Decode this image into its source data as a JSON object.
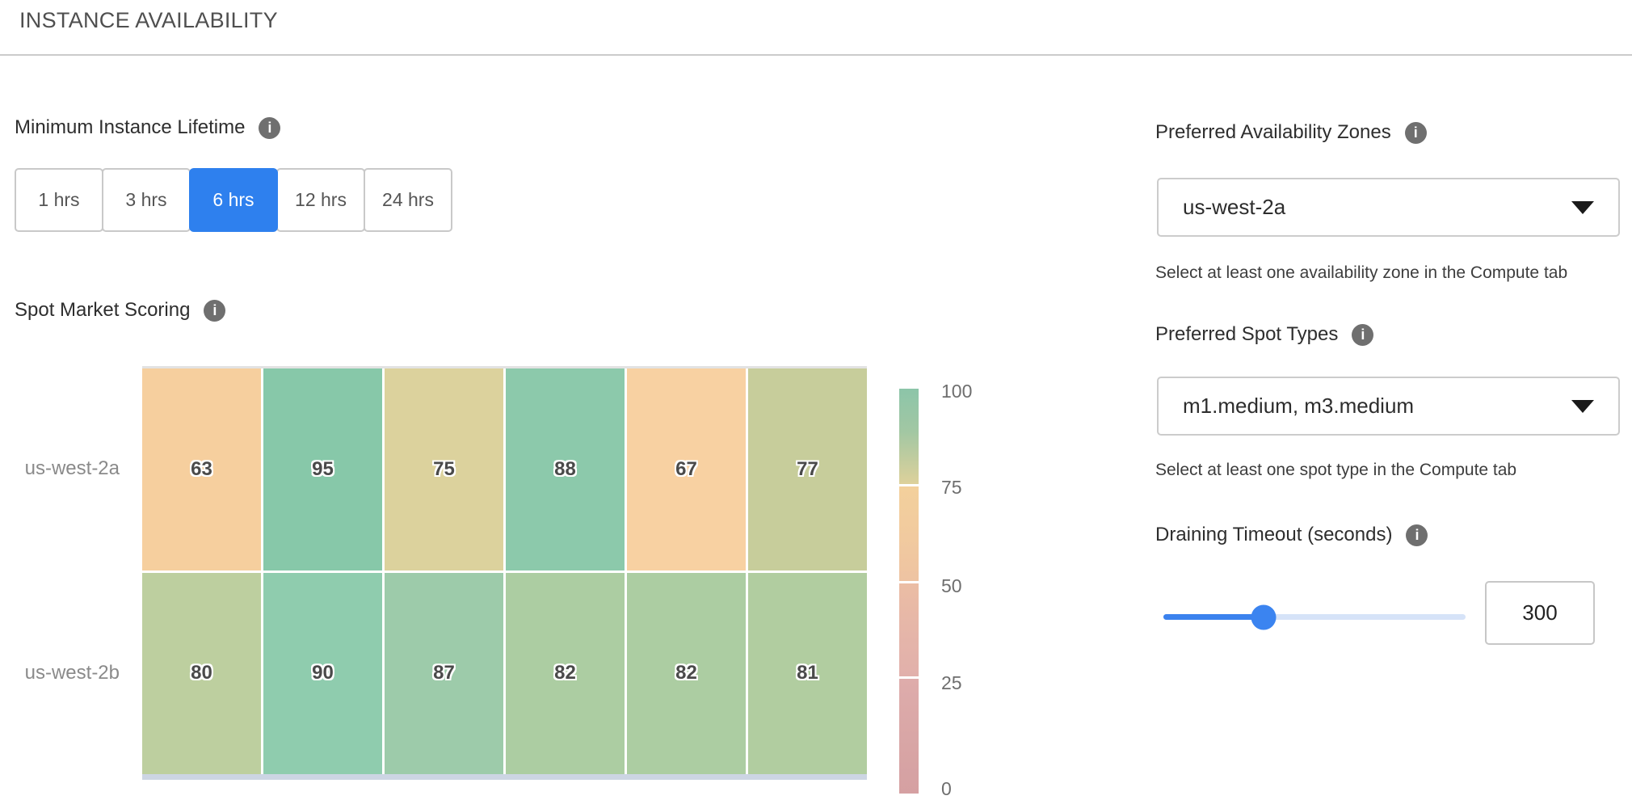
{
  "title": "INSTANCE AVAILABILITY",
  "minimum_instance_lifetime": {
    "label": "Minimum Instance Lifetime",
    "options": [
      "1 hrs",
      "3 hrs",
      "6 hrs",
      "12 hrs",
      "24 hrs"
    ],
    "selected": "6 hrs"
  },
  "spot_market_scoring": {
    "label": "Spot Market Scoring"
  },
  "chart_data": {
    "type": "heatmap",
    "title": "Spot Market Scoring",
    "rows": [
      "us-west-2a",
      "us-west-2b"
    ],
    "series": [
      {
        "name": "us-west-2a",
        "values": [
          63,
          95,
          75,
          88,
          67,
          77
        ]
      },
      {
        "name": "us-west-2b",
        "values": [
          80,
          90,
          87,
          82,
          82,
          81
        ]
      }
    ],
    "cell_colors": [
      [
        "#f6cf9e",
        "#87c8a9",
        "#dcd29d",
        "#8cc9ab",
        "#f8d1a2",
        "#c7cd9b"
      ],
      [
        "#bdcf9f",
        "#8fccae",
        "#9dcbaa",
        "#accda2",
        "#accda2",
        "#b1cda0"
      ]
    ],
    "colorbar": {
      "ticks": [
        "100",
        "75",
        "50",
        "25",
        "0"
      ],
      "min": 0,
      "max": 100,
      "gradient_top_to_bottom": [
        "#8cc5a9",
        "#ddd19b",
        "#f3d09c",
        "#eec3a2",
        "#ebbda4",
        "#e1b0ab",
        "#deacab",
        "#d5a0a2"
      ],
      "position": "right"
    },
    "grid": false
  },
  "preferred_availability_zones": {
    "label": "Preferred Availability Zones",
    "value": "us-west-2a",
    "helper": "Select at least one availability zone in the Compute tab"
  },
  "preferred_spot_types": {
    "label": "Preferred Spot Types",
    "value": "m1.medium, m3.medium",
    "helper": "Select at least one spot type in the Compute tab"
  },
  "draining_timeout": {
    "label": "Draining Timeout (seconds)",
    "value": "300",
    "slider_fraction": 0.33
  },
  "colors": {
    "selected_button_blue": "#2e80ee",
    "slider_fill_blue": "#3b82ee",
    "slider_track_light": "#d6e3f8",
    "info_icon_gray": "#6f6f6f",
    "divider_gray": "#cbcbcb"
  }
}
